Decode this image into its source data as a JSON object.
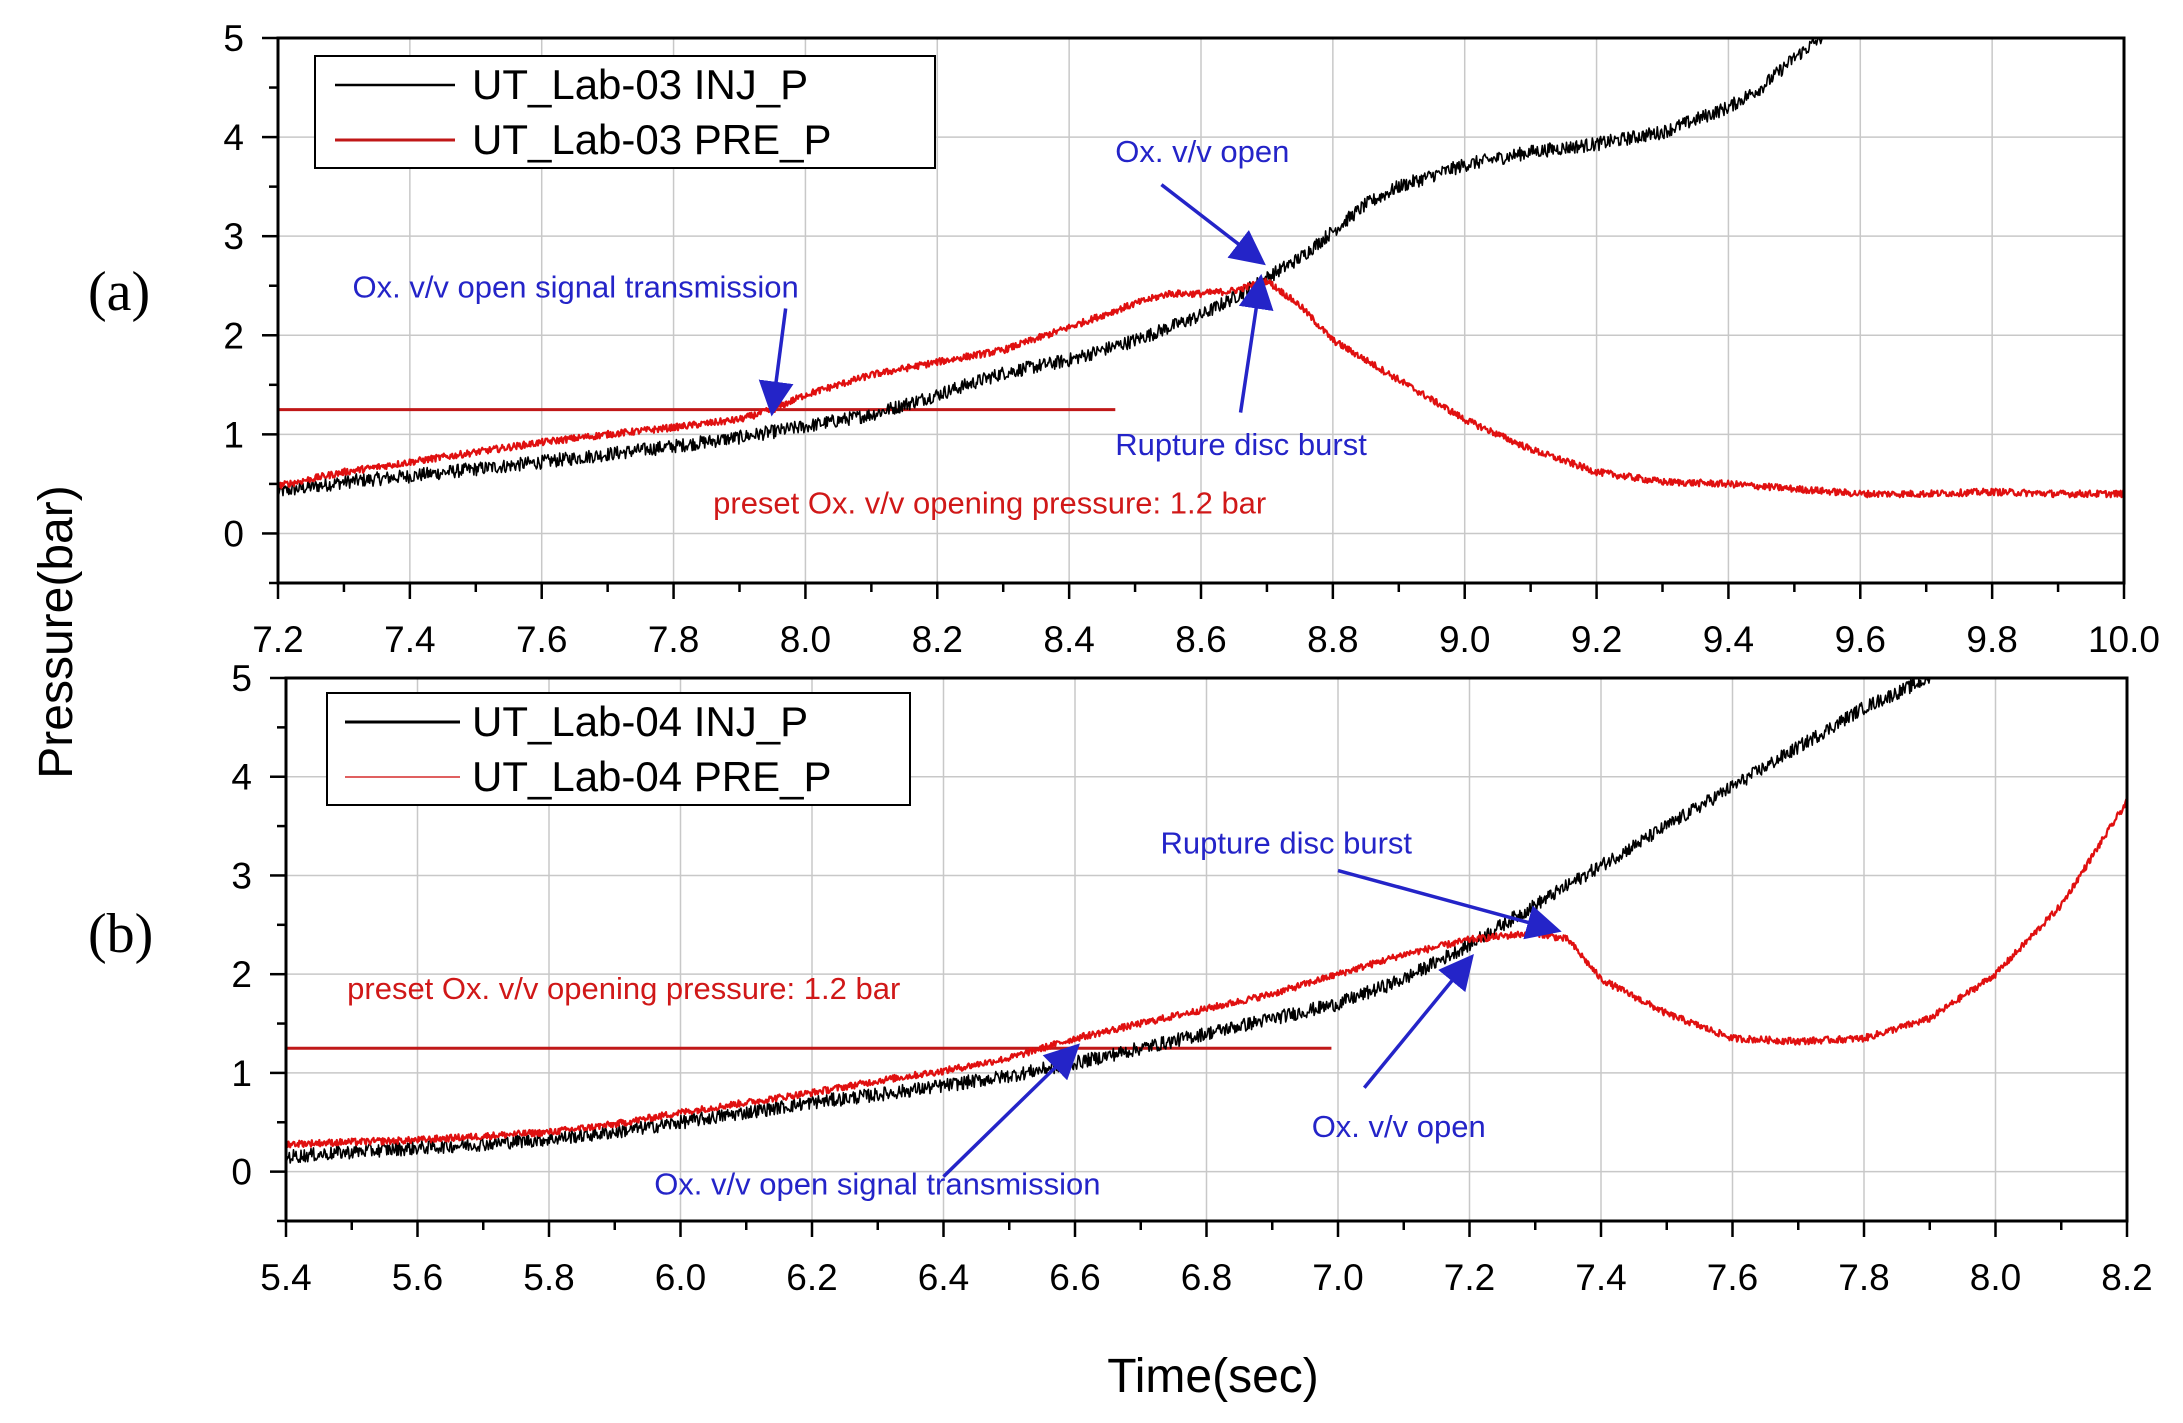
{
  "colors": {
    "inj_series": "#000000",
    "pre_series": "#e01010",
    "preset_line": "#c01818",
    "annotation_blue": "#2424c8",
    "annotation_red": "#d01818",
    "grid": "#c8c8c8"
  },
  "figure": {
    "ylabel": "Pressure(bar)",
    "xlabel": "Time(sec)"
  },
  "chart_data": [
    {
      "type": "line",
      "panel_label": "(a)",
      "xlim": [
        7.2,
        10.0
      ],
      "ylim": [
        -0.5,
        5
      ],
      "xticks": [
        7.2,
        7.4,
        7.6,
        7.8,
        8.0,
        8.2,
        8.4,
        8.6,
        8.8,
        9.0,
        9.2,
        9.4,
        9.6,
        9.8,
        10.0
      ],
      "xtick_labels": [
        "7.2",
        "7.4",
        "7.6",
        "7.8",
        "8.0",
        "8.2",
        "8.4",
        "8.6",
        "8.8",
        "9.0",
        "9.2",
        "9.4",
        "9.6",
        "9.8",
        "10.0"
      ],
      "yticks": [
        0,
        1,
        2,
        3,
        4,
        5
      ],
      "ytick_labels": [
        "0",
        "1",
        "2",
        "3",
        "4",
        "5"
      ],
      "grid": true,
      "legend_position": "top-left",
      "series": [
        {
          "name": "UT_Lab-03 INJ_P",
          "color_key": "inj_series",
          "noise": 0.07,
          "x": [
            7.2,
            7.3,
            7.4,
            7.5,
            7.6,
            7.7,
            7.8,
            7.9,
            8.0,
            8.1,
            8.2,
            8.3,
            8.4,
            8.5,
            8.6,
            8.65,
            8.7,
            8.75,
            8.8,
            8.85,
            8.9,
            9.0,
            9.1,
            9.2,
            9.3,
            9.4,
            9.45,
            9.5,
            9.55
          ],
          "y": [
            0.42,
            0.52,
            0.58,
            0.65,
            0.72,
            0.8,
            0.88,
            0.97,
            1.08,
            1.2,
            1.4,
            1.62,
            1.75,
            1.95,
            2.2,
            2.38,
            2.58,
            2.78,
            3.05,
            3.32,
            3.5,
            3.72,
            3.85,
            3.93,
            4.05,
            4.3,
            4.5,
            4.8,
            5.05
          ]
        },
        {
          "name": "UT_Lab-03 PRE_P",
          "color_key": "pre_series",
          "noise": 0.035,
          "x": [
            7.2,
            7.3,
            7.4,
            7.5,
            7.6,
            7.7,
            7.8,
            7.9,
            7.95,
            8.0,
            8.1,
            8.2,
            8.3,
            8.4,
            8.5,
            8.55,
            8.6,
            8.65,
            8.7,
            8.75,
            8.8,
            8.9,
            9.0,
            9.1,
            9.2,
            9.3,
            9.4,
            9.5,
            9.6,
            9.7,
            9.8,
            9.9,
            10.0
          ],
          "y": [
            0.48,
            0.62,
            0.72,
            0.82,
            0.92,
            1.0,
            1.07,
            1.15,
            1.25,
            1.4,
            1.6,
            1.73,
            1.85,
            2.08,
            2.32,
            2.42,
            2.42,
            2.45,
            2.55,
            2.3,
            1.95,
            1.55,
            1.15,
            0.85,
            0.62,
            0.52,
            0.5,
            0.45,
            0.4,
            0.4,
            0.42,
            0.4,
            0.4
          ]
        }
      ],
      "preset_line": {
        "x0": 7.2,
        "x1": 8.47,
        "y": 1.25
      },
      "annotations": [
        {
          "text": "Ox. v/v open signal transmission",
          "color_key": "annotation_blue",
          "text_x": 7.313,
          "text_y": 2.38,
          "arrow_from": [
            7.97,
            2.27
          ],
          "arrow_to": [
            7.95,
            1.25
          ]
        },
        {
          "text": "Ox. v/v open",
          "color_key": "annotation_blue",
          "text_x": 8.47,
          "text_y": 3.75,
          "arrow_from": [
            8.54,
            3.52
          ],
          "arrow_to": [
            8.69,
            2.75
          ]
        },
        {
          "text": "Rupture disc burst",
          "color_key": "annotation_blue",
          "text_x": 8.47,
          "text_y": 0.79,
          "arrow_from": [
            8.66,
            1.22
          ],
          "arrow_to": [
            8.69,
            2.55
          ]
        },
        {
          "text": "preset Ox. v/v opening pressure: 1.2 bar",
          "color_key": "annotation_red",
          "text_x": 7.86,
          "text_y": 0.2
        }
      ]
    },
    {
      "type": "line",
      "panel_label": "(b)",
      "xlim": [
        5.4,
        8.2
      ],
      "ylim": [
        -0.5,
        5
      ],
      "xticks": [
        5.4,
        5.6,
        5.8,
        6.0,
        6.2,
        6.4,
        6.6,
        6.8,
        7.0,
        7.2,
        7.4,
        7.6,
        7.8,
        8.0,
        8.2
      ],
      "xtick_labels": [
        "5.4",
        "5.6",
        "5.8",
        "6.0",
        "6.2",
        "6.4",
        "6.6",
        "6.8",
        "7.0",
        "7.2",
        "7.4",
        "7.6",
        "7.8",
        "8.0",
        "8.2"
      ],
      "yticks": [
        0,
        1,
        2,
        3,
        4,
        5
      ],
      "ytick_labels": [
        "0",
        "1",
        "2",
        "3",
        "4",
        "5"
      ],
      "grid": true,
      "legend_position": "top-left",
      "series": [
        {
          "name": "UT_Lab-04 INJ_P",
          "color_key": "inj_series",
          "noise": 0.07,
          "x": [
            5.4,
            5.5,
            5.6,
            5.7,
            5.8,
            5.9,
            6.0,
            6.1,
            6.2,
            6.3,
            6.4,
            6.5,
            6.6,
            6.7,
            6.8,
            6.9,
            7.0,
            7.1,
            7.2,
            7.3,
            7.4,
            7.5,
            7.6,
            7.7,
            7.8,
            7.9
          ],
          "y": [
            0.15,
            0.2,
            0.24,
            0.28,
            0.33,
            0.4,
            0.5,
            0.6,
            0.7,
            0.78,
            0.87,
            0.97,
            1.1,
            1.25,
            1.4,
            1.55,
            1.7,
            1.95,
            2.3,
            2.7,
            3.1,
            3.5,
            3.9,
            4.3,
            4.7,
            5.0
          ]
        },
        {
          "name": "UT_Lab-04 PRE_P",
          "color_key": "pre_series",
          "noise": 0.035,
          "x": [
            5.4,
            5.5,
            5.6,
            5.7,
            5.8,
            5.9,
            6.0,
            6.1,
            6.2,
            6.3,
            6.4,
            6.5,
            6.6,
            6.7,
            6.8,
            6.9,
            7.0,
            7.1,
            7.2,
            7.3,
            7.35,
            7.4,
            7.5,
            7.6,
            7.7,
            7.8,
            7.9,
            8.0,
            8.1,
            8.2
          ],
          "y": [
            0.28,
            0.3,
            0.32,
            0.36,
            0.4,
            0.48,
            0.6,
            0.7,
            0.8,
            0.92,
            1.02,
            1.15,
            1.35,
            1.5,
            1.65,
            1.8,
            2.0,
            2.2,
            2.35,
            2.42,
            2.35,
            1.95,
            1.6,
            1.35,
            1.32,
            1.35,
            1.55,
            2.0,
            2.7,
            3.75
          ]
        }
      ],
      "preset_line": {
        "x0": 5.4,
        "x1": 6.99,
        "y": 1.25
      },
      "annotations": [
        {
          "text": "preset Ox. v/v opening pressure: 1.2 bar",
          "color_key": "annotation_red",
          "text_x": 5.493,
          "text_y": 1.75
        },
        {
          "text": "Rupture disc burst",
          "color_key": "annotation_blue",
          "text_x": 6.73,
          "text_y": 3.22,
          "arrow_from": [
            7.0,
            3.05
          ],
          "arrow_to": [
            7.33,
            2.45
          ]
        },
        {
          "text": "Ox. v/v open",
          "color_key": "annotation_blue",
          "text_x": 6.96,
          "text_y": 0.35,
          "arrow_from": [
            7.04,
            0.85
          ],
          "arrow_to": [
            7.2,
            2.15
          ]
        },
        {
          "text": "Ox. v/v open signal transmission",
          "color_key": "annotation_blue",
          "text_x": 5.96,
          "text_y": -0.23,
          "arrow_from": [
            6.4,
            -0.05
          ],
          "arrow_to": [
            6.6,
            1.25
          ]
        }
      ]
    }
  ]
}
